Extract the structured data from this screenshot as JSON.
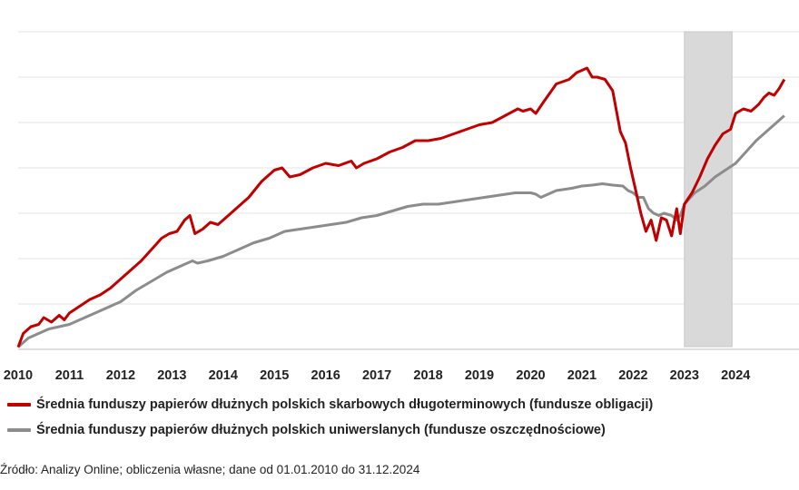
{
  "chart_data": {
    "type": "line",
    "title": "",
    "xlabel": "",
    "ylabel": "",
    "x_ticks": [
      "2010",
      "2011",
      "2012",
      "2013",
      "2014",
      "2015",
      "2016",
      "2017",
      "2018",
      "2019",
      "2020",
      "2021",
      "2022",
      "2023",
      "2024"
    ],
    "xlim": [
      2010.0,
      2025.0
    ],
    "ylim": [
      0,
      7
    ],
    "y_tick_labels_shown": false,
    "grid": "horizontal",
    "legend": "bottom",
    "shaded_period": {
      "from": 2023.0,
      "to": 2023.93,
      "color": "#d9d9d9"
    },
    "series": [
      {
        "name": "Średnia funduszy papierów dłużnych polskich skarbowych długoterminowych (fundusze obligacji)",
        "color": "#c00000",
        "x": [
          2010.0,
          2010.1,
          2010.25,
          2010.4,
          2010.5,
          2010.65,
          2010.8,
          2010.9,
          2011.0,
          2011.2,
          2011.4,
          2011.6,
          2011.8,
          2012.0,
          2012.2,
          2012.4,
          2012.6,
          2012.8,
          2012.95,
          2013.1,
          2013.25,
          2013.35,
          2013.45,
          2013.6,
          2013.75,
          2013.9,
          2014.0,
          2014.25,
          2014.5,
          2014.75,
          2015.0,
          2015.15,
          2015.3,
          2015.5,
          2015.75,
          2016.0,
          2016.25,
          2016.5,
          2016.6,
          2016.75,
          2017.0,
          2017.25,
          2017.5,
          2017.75,
          2018.0,
          2018.25,
          2018.5,
          2018.75,
          2019.0,
          2019.25,
          2019.5,
          2019.75,
          2019.85,
          2020.0,
          2020.1,
          2020.25,
          2020.5,
          2020.75,
          2020.9,
          2021.0,
          2021.1,
          2021.2,
          2021.3,
          2021.45,
          2021.6,
          2021.75,
          2021.85,
          2021.95,
          2022.05,
          2022.15,
          2022.25,
          2022.35,
          2022.45,
          2022.55,
          2022.65,
          2022.75,
          2022.85,
          2022.92,
          2023.0,
          2023.15,
          2023.3,
          2023.45,
          2023.6,
          2023.75,
          2023.9,
          2024.0,
          2024.15,
          2024.3,
          2024.45,
          2024.55,
          2024.65,
          2024.75,
          2024.85,
          2024.95
        ],
        "y": [
          0.05,
          0.35,
          0.5,
          0.55,
          0.7,
          0.6,
          0.75,
          0.65,
          0.8,
          0.95,
          1.1,
          1.2,
          1.35,
          1.55,
          1.75,
          1.95,
          2.2,
          2.45,
          2.55,
          2.6,
          2.85,
          2.95,
          2.55,
          2.65,
          2.8,
          2.75,
          2.85,
          3.1,
          3.35,
          3.7,
          3.95,
          4.0,
          3.8,
          3.85,
          4.0,
          4.1,
          4.05,
          4.15,
          4.0,
          4.1,
          4.2,
          4.35,
          4.45,
          4.6,
          4.6,
          4.65,
          4.75,
          4.85,
          4.95,
          5.0,
          5.15,
          5.3,
          5.25,
          5.3,
          5.2,
          5.45,
          5.85,
          5.95,
          6.1,
          6.15,
          6.2,
          6.0,
          6.0,
          5.95,
          5.7,
          4.8,
          4.55,
          4.0,
          3.5,
          3.0,
          2.6,
          2.85,
          2.4,
          2.9,
          2.85,
          2.5,
          3.1,
          2.55,
          3.2,
          3.45,
          3.8,
          4.2,
          4.5,
          4.75,
          4.85,
          5.2,
          5.3,
          5.25,
          5.4,
          5.55,
          5.65,
          5.6,
          5.75,
          5.95
        ]
      },
      {
        "name": "Średnia funduszy papierów dłużnych polskich uniwerslanych (fundusze oszczędnościowe)",
        "color": "#8c8c8c",
        "x": [
          2010.0,
          2010.2,
          2010.4,
          2010.6,
          2010.8,
          2011.0,
          2011.2,
          2011.5,
          2011.8,
          2012.0,
          2012.3,
          2012.6,
          2012.9,
          2013.2,
          2013.4,
          2013.5,
          2013.7,
          2014.0,
          2014.3,
          2014.6,
          2014.9,
          2015.2,
          2015.5,
          2015.8,
          2016.1,
          2016.4,
          2016.7,
          2017.0,
          2017.3,
          2017.6,
          2017.9,
          2018.2,
          2018.5,
          2018.8,
          2019.1,
          2019.4,
          2019.7,
          2020.0,
          2020.1,
          2020.2,
          2020.3,
          2020.5,
          2020.8,
          2021.0,
          2021.2,
          2021.4,
          2021.6,
          2021.8,
          2021.9,
          2022.0,
          2022.1,
          2022.2,
          2022.3,
          2022.4,
          2022.5,
          2022.6,
          2022.75,
          2022.85,
          2022.92,
          2023.0,
          2023.2,
          2023.4,
          2023.6,
          2023.8,
          2024.0,
          2024.2,
          2024.4,
          2024.6,
          2024.8,
          2024.95
        ],
        "y": [
          0.05,
          0.25,
          0.35,
          0.45,
          0.5,
          0.55,
          0.65,
          0.8,
          0.95,
          1.05,
          1.3,
          1.5,
          1.7,
          1.85,
          1.95,
          1.9,
          1.95,
          2.05,
          2.2,
          2.35,
          2.45,
          2.6,
          2.65,
          2.7,
          2.75,
          2.8,
          2.9,
          2.95,
          3.05,
          3.15,
          3.2,
          3.2,
          3.25,
          3.3,
          3.35,
          3.4,
          3.45,
          3.45,
          3.42,
          3.35,
          3.4,
          3.5,
          3.55,
          3.6,
          3.62,
          3.65,
          3.62,
          3.6,
          3.5,
          3.45,
          3.35,
          3.35,
          3.1,
          3.0,
          2.95,
          3.0,
          2.95,
          2.85,
          2.95,
          3.2,
          3.45,
          3.6,
          3.8,
          3.95,
          4.1,
          4.35,
          4.6,
          4.8,
          5.0,
          5.15
        ]
      }
    ]
  },
  "source_text": "Źródło: Analizy Online; obliczenia własne; dane od 01.01.2010 do 31.12.2024"
}
